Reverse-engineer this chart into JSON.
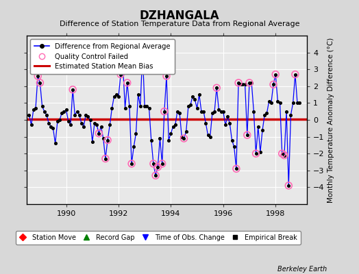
{
  "title": "DZHANGALA",
  "subtitle": "Difference of Station Temperature Data from Regional Average",
  "ylabel": "Monthly Temperature Anomaly Difference (°C)",
  "xlabel_bottom": "Berkeley Earth",
  "ylim": [
    -5,
    5
  ],
  "xlim": [
    1988.5,
    1999.2
  ],
  "bias": 0.05,
  "background_color": "#d8d8d8",
  "plot_bg_color": "#e8e8e8",
  "grid_color": "#ffffff",
  "x_ticks": [
    1990,
    1992,
    1994,
    1996,
    1998
  ],
  "y_ticks": [
    -4,
    -3,
    -2,
    -1,
    0,
    1,
    2,
    3,
    4
  ],
  "time_series": [
    [
      1988.583,
      0.3
    ],
    [
      1988.667,
      -0.3
    ],
    [
      1988.75,
      0.6
    ],
    [
      1988.833,
      0.7
    ],
    [
      1988.917,
      2.6
    ],
    [
      1989.0,
      2.2
    ],
    [
      1989.083,
      0.8
    ],
    [
      1989.167,
      0.5
    ],
    [
      1989.25,
      0.3
    ],
    [
      1989.333,
      -0.2
    ],
    [
      1989.417,
      -0.4
    ],
    [
      1989.5,
      -0.5
    ],
    [
      1989.583,
      -1.4
    ],
    [
      1989.667,
      -0.1
    ],
    [
      1989.75,
      0.0
    ],
    [
      1989.833,
      0.4
    ],
    [
      1989.917,
      0.5
    ],
    [
      1990.0,
      0.6
    ],
    [
      1990.083,
      -0.1
    ],
    [
      1990.167,
      -0.3
    ],
    [
      1990.25,
      1.8
    ],
    [
      1990.333,
      0.3
    ],
    [
      1990.417,
      0.5
    ],
    [
      1990.5,
      0.3
    ],
    [
      1990.583,
      -0.2
    ],
    [
      1990.667,
      -0.4
    ],
    [
      1990.75,
      0.3
    ],
    [
      1990.833,
      0.2
    ],
    [
      1990.917,
      0.0
    ],
    [
      1991.0,
      -1.3
    ],
    [
      1991.083,
      -0.2
    ],
    [
      1991.167,
      -0.3
    ],
    [
      1991.25,
      -0.8
    ],
    [
      1991.333,
      -0.4
    ],
    [
      1991.417,
      -1.1
    ],
    [
      1991.5,
      -2.3
    ],
    [
      1991.583,
      -1.2
    ],
    [
      1991.667,
      -0.3
    ],
    [
      1991.75,
      0.7
    ],
    [
      1991.833,
      1.4
    ],
    [
      1991.917,
      1.5
    ],
    [
      1992.0,
      1.4
    ],
    [
      1992.083,
      2.7
    ],
    [
      1992.167,
      3.2
    ],
    [
      1992.25,
      0.7
    ],
    [
      1992.333,
      2.2
    ],
    [
      1992.417,
      0.8
    ],
    [
      1992.5,
      -2.6
    ],
    [
      1992.583,
      -1.6
    ],
    [
      1992.667,
      -0.8
    ],
    [
      1992.75,
      1.5
    ],
    [
      1992.833,
      0.8
    ],
    [
      1992.917,
      4.0
    ],
    [
      1993.0,
      0.8
    ],
    [
      1993.083,
      0.8
    ],
    [
      1993.167,
      0.7
    ],
    [
      1993.25,
      -1.2
    ],
    [
      1993.333,
      -2.6
    ],
    [
      1993.417,
      -3.3
    ],
    [
      1993.5,
      -2.8
    ],
    [
      1993.583,
      -1.1
    ],
    [
      1993.667,
      -2.6
    ],
    [
      1993.75,
      0.5
    ],
    [
      1993.833,
      2.6
    ],
    [
      1993.917,
      -1.2
    ],
    [
      1994.0,
      -0.8
    ],
    [
      1994.083,
      -0.4
    ],
    [
      1994.167,
      -0.3
    ],
    [
      1994.25,
      0.5
    ],
    [
      1994.333,
      0.4
    ],
    [
      1994.417,
      -1.0
    ],
    [
      1994.5,
      -1.1
    ],
    [
      1994.583,
      -0.7
    ],
    [
      1994.667,
      0.8
    ],
    [
      1994.75,
      0.9
    ],
    [
      1994.833,
      1.4
    ],
    [
      1994.917,
      1.2
    ],
    [
      1995.0,
      0.7
    ],
    [
      1995.083,
      1.5
    ],
    [
      1995.167,
      0.5
    ],
    [
      1995.25,
      0.5
    ],
    [
      1995.333,
      -0.2
    ],
    [
      1995.417,
      -0.9
    ],
    [
      1995.5,
      -1.0
    ],
    [
      1995.583,
      0.4
    ],
    [
      1995.667,
      0.5
    ],
    [
      1995.75,
      1.9
    ],
    [
      1995.833,
      0.6
    ],
    [
      1995.917,
      0.5
    ],
    [
      1996.0,
      0.5
    ],
    [
      1996.083,
      -0.3
    ],
    [
      1996.167,
      0.2
    ],
    [
      1996.25,
      -0.2
    ],
    [
      1996.333,
      -1.2
    ],
    [
      1996.417,
      -1.6
    ],
    [
      1996.5,
      -2.9
    ],
    [
      1996.583,
      2.2
    ],
    [
      1996.667,
      2.1
    ],
    [
      1996.75,
      2.1
    ],
    [
      1996.833,
      2.1
    ],
    [
      1996.917,
      -0.9
    ],
    [
      1997.0,
      2.2
    ],
    [
      1997.083,
      2.2
    ],
    [
      1997.167,
      0.5
    ],
    [
      1997.25,
      -2.0
    ],
    [
      1997.333,
      -0.4
    ],
    [
      1997.417,
      -1.9
    ],
    [
      1997.5,
      -0.6
    ],
    [
      1997.583,
      0.3
    ],
    [
      1997.667,
      0.4
    ],
    [
      1997.75,
      1.1
    ],
    [
      1997.833,
      1.0
    ],
    [
      1997.917,
      2.1
    ],
    [
      1998.0,
      2.7
    ],
    [
      1998.083,
      1.1
    ],
    [
      1998.167,
      1.0
    ],
    [
      1998.25,
      -2.0
    ],
    [
      1998.333,
      -2.1
    ],
    [
      1998.417,
      0.5
    ],
    [
      1998.5,
      -3.9
    ],
    [
      1998.583,
      0.3
    ],
    [
      1998.667,
      1.0
    ],
    [
      1998.75,
      2.7
    ],
    [
      1998.833,
      1.0
    ],
    [
      1998.917,
      1.0
    ]
  ],
  "qc_failed": [
    1988.917,
    1989.0,
    1990.25,
    1991.25,
    1991.5,
    1991.583,
    1992.083,
    1992.167,
    1992.333,
    1992.5,
    1992.917,
    1993.333,
    1993.417,
    1993.5,
    1993.667,
    1993.75,
    1993.833,
    1994.5,
    1995.75,
    1996.5,
    1996.583,
    1996.917,
    1997.0,
    1997.25,
    1997.917,
    1998.0,
    1998.25,
    1998.333,
    1998.5,
    1998.75
  ],
  "line_color": "#0000ff",
  "marker_color": "#000000",
  "qc_color": "#ff69b4",
  "bias_color": "#cc0000",
  "legend1_labels": [
    "Difference from Regional Average",
    "Quality Control Failed",
    "Estimated Station Mean Bias"
  ],
  "legend2_labels": [
    "Station Move",
    "Record Gap",
    "Time of Obs. Change",
    "Empirical Break"
  ]
}
